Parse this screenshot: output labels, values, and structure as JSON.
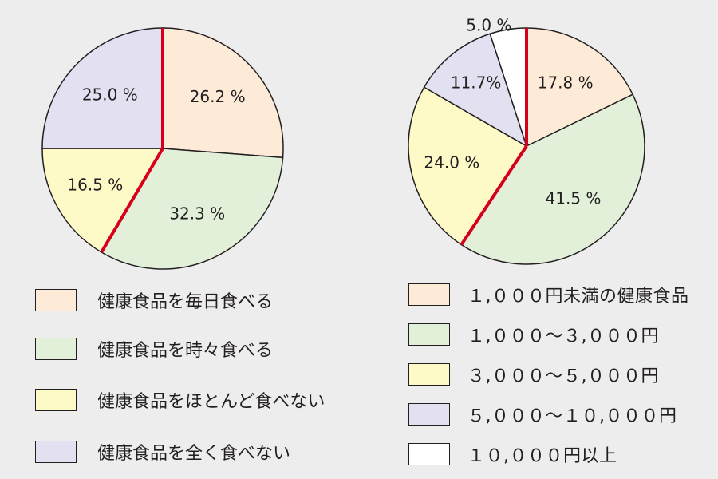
{
  "chart_data": [
    {
      "type": "pie",
      "start_angle_deg": 0,
      "direction": "clockwise",
      "highlight_boundaries": [
        0,
        2
      ],
      "highlight_color": "#d6001c",
      "slices": [
        {
          "label": "健康食品を毎日食べる",
          "value": 26.2,
          "value_label": "26.2 %",
          "color": "#fdebd8"
        },
        {
          "label": "健康食品を時々食べる",
          "value": 32.3,
          "value_label": "32.3 %",
          "color": "#e2f0d9"
        },
        {
          "label": "健康食品をほとんど食べない",
          "value": 16.5,
          "value_label": "16.5 %",
          "color": "#fdfac8"
        },
        {
          "label": "健康食品を全く食べない",
          "value": 25.0,
          "value_label": "25.0 %",
          "color": "#e3e1f1"
        }
      ],
      "legend": [
        "健康食品を毎日食べる",
        "健康食品を時々食べる",
        "健康食品をほとんど食べない",
        "健康食品を全く食べない"
      ]
    },
    {
      "type": "pie",
      "start_angle_deg": 0,
      "direction": "clockwise",
      "highlight_boundaries": [
        0,
        2
      ],
      "highlight_color": "#d6001c",
      "slices": [
        {
          "label": "1,000円未満の健康食品",
          "value": 17.8,
          "value_label": "17.8 %",
          "color": "#fdebd8"
        },
        {
          "label": "1,000～3,000円",
          "value": 41.5,
          "value_label": "41.5 %",
          "color": "#e2f0d9"
        },
        {
          "label": "3,000～5,000円",
          "value": 24.0,
          "value_label": "24.0 %",
          "color": "#fdfac8"
        },
        {
          "label": "5,000～10,000円",
          "value": 11.7,
          "value_label": "11.7%",
          "color": "#e3e1f1"
        },
        {
          "label": "10,000円以上",
          "value": 5.0,
          "value_label": "5.0 %",
          "color": "#ffffff"
        }
      ],
      "legend": [
        "1,000円未満の健康食品",
        "1,000～3,000円",
        "3,000～5,000円",
        "5,000～10,000円",
        "10,000円以上"
      ]
    }
  ],
  "legend_left": [
    {
      "label": "健康食品を毎日食べる",
      "color": "#fdebd8"
    },
    {
      "label": "健康食品を時々食べる",
      "color": "#e2f0d9"
    },
    {
      "label": "健康食品をほとんど食べない",
      "color": "#fdfac8"
    },
    {
      "label": "健康食品を全く食べない",
      "color": "#e3e1f1"
    }
  ],
  "legend_right": [
    {
      "label": "１,０００円未満の健康食品",
      "color": "#fdebd8"
    },
    {
      "label": "１,０００～３,０００円",
      "color": "#e2f0d9"
    },
    {
      "label": "３,０００～５,０００円",
      "color": "#fdfac8"
    },
    {
      "label": "５,０００～１０,０００円",
      "color": "#e3e1f1"
    },
    {
      "label": "１０,０００円以上",
      "color": "#ffffff"
    }
  ]
}
